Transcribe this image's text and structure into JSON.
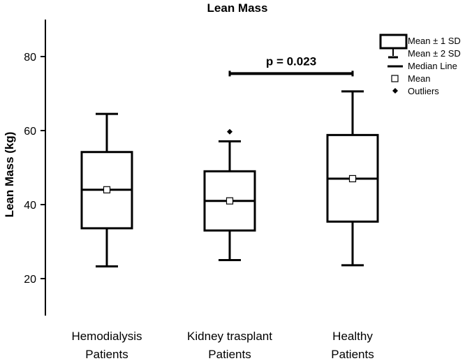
{
  "chart_data": {
    "type": "box",
    "title": "Lean Mass",
    "ylabel": "Lean Mass (kg)",
    "xlabel": "",
    "ylim": [
      10,
      90
    ],
    "yticks": [
      20,
      40,
      60,
      80
    ],
    "groups": [
      {
        "label_lines": [
          "Hemodialysis",
          "Patients"
        ],
        "mean": 44,
        "median": 44,
        "box_low": 33.6,
        "box_high": 54.2,
        "whisker_low": 23.3,
        "whisker_high": 64.5,
        "outliers": []
      },
      {
        "label_lines": [
          "Kidney trasplant",
          "Patients"
        ],
        "mean": 41,
        "median": 41,
        "box_low": 33,
        "box_high": 49,
        "whisker_low": 25,
        "whisker_high": 57.1,
        "outliers": [
          59.7
        ]
      },
      {
        "label_lines": [
          "Healthy",
          "Patients"
        ],
        "mean": 47,
        "median": 47,
        "box_low": 35.4,
        "box_high": 58.8,
        "whisker_low": 23.6,
        "whisker_high": 70.6,
        "outliers": []
      }
    ],
    "annotation": {
      "text": "p = 0.023",
      "from_group": 1,
      "to_group": 2,
      "y": 75.4
    },
    "legend": {
      "position": "top-right",
      "entries": [
        "Mean ± 1 SD",
        "Mean ± 2 SD",
        "Median Line",
        "Mean",
        "Outliers"
      ]
    },
    "grid": false
  }
}
